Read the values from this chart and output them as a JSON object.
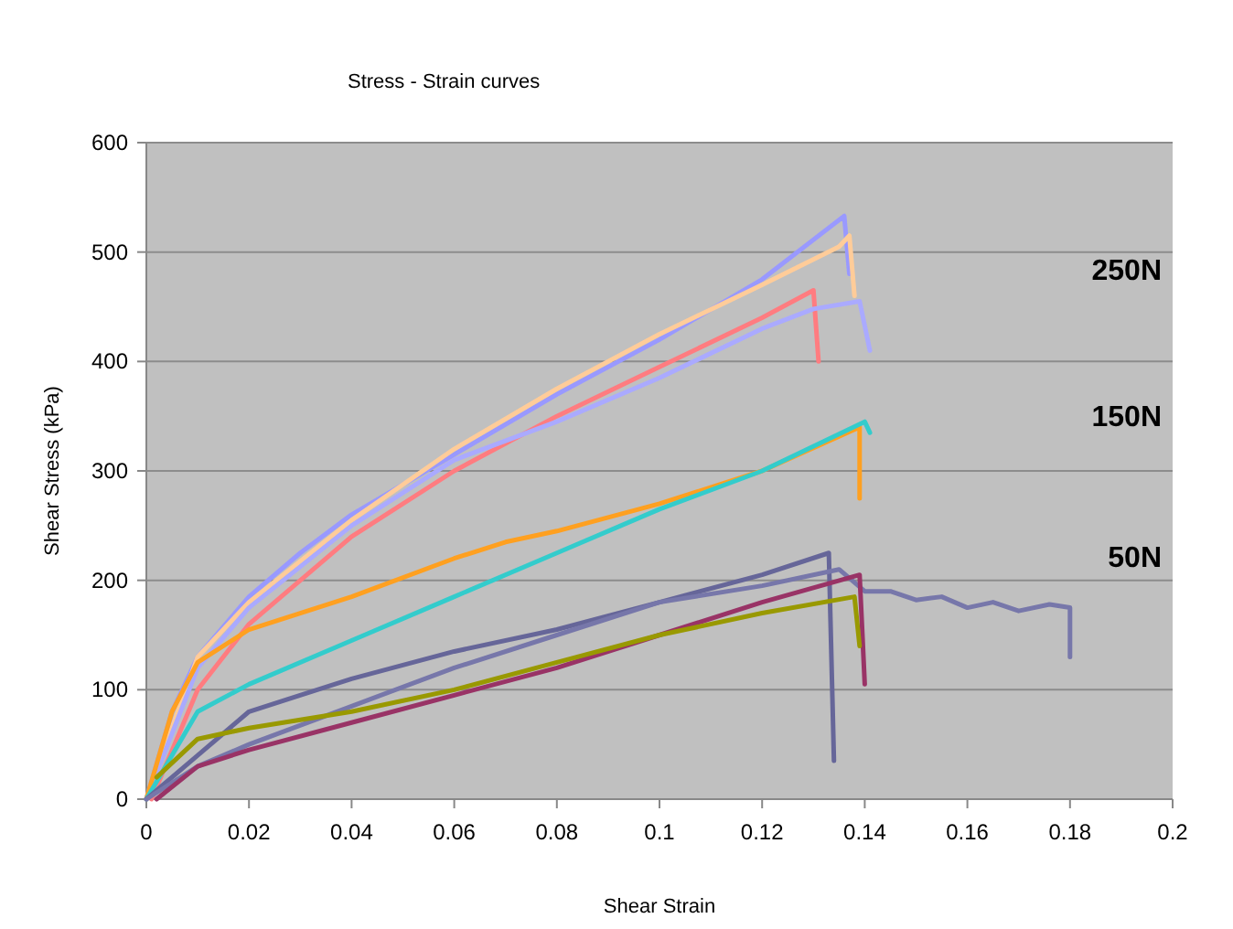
{
  "chart_data": {
    "type": "line",
    "title": "Stress - Strain curves",
    "xlabel": "Shear Strain",
    "ylabel": "Shear Stress (kPa)",
    "xlim": [
      0,
      0.2
    ],
    "xticks": [
      0,
      0.02,
      0.04,
      0.06,
      0.08,
      0.1,
      0.12,
      0.14,
      0.16,
      0.18,
      0.2
    ],
    "ylim": [
      0,
      600
    ],
    "yticks": [
      0,
      100,
      200,
      300,
      400,
      500,
      600
    ],
    "grid": "y",
    "line_style": "solid",
    "annotations": [
      "250N",
      "150N",
      "50N"
    ],
    "series": [
      {
        "color": "#9999ff",
        "x": [
          0,
          0.005,
          0.01,
          0.02,
          0.03,
          0.04,
          0.06,
          0.08,
          0.1,
          0.12,
          0.136,
          0.137
        ],
        "values": [
          0,
          80,
          130,
          185,
          225,
          260,
          315,
          370,
          420,
          475,
          533,
          480
        ]
      },
      {
        "color": "#ffcc99",
        "x": [
          0,
          0.01,
          0.02,
          0.04,
          0.06,
          0.08,
          0.1,
          0.12,
          0.135,
          0.137,
          0.138
        ],
        "values": [
          0,
          130,
          180,
          255,
          320,
          375,
          425,
          470,
          505,
          515,
          460
        ]
      },
      {
        "color": "#ff7c80",
        "x": [
          0.001,
          0.01,
          0.02,
          0.04,
          0.06,
          0.08,
          0.1,
          0.12,
          0.13,
          0.131
        ],
        "values": [
          0,
          100,
          160,
          240,
          300,
          350,
          395,
          440,
          465,
          400
        ]
      },
      {
        "color": "#aaaaff",
        "x": [
          0,
          0.01,
          0.02,
          0.04,
          0.06,
          0.08,
          0.1,
          0.12,
          0.13,
          0.139,
          0.141
        ],
        "values": [
          0,
          120,
          175,
          250,
          310,
          345,
          385,
          430,
          448,
          455,
          410
        ]
      },
      {
        "color": "#ffa020",
        "x": [
          0,
          0.005,
          0.01,
          0.02,
          0.04,
          0.06,
          0.07,
          0.08,
          0.1,
          0.12,
          0.139,
          0.139
        ],
        "values": [
          0,
          80,
          125,
          155,
          185,
          220,
          235,
          245,
          270,
          300,
          340,
          275
        ]
      },
      {
        "color": "#33cccc",
        "x": [
          0,
          0.01,
          0.02,
          0.04,
          0.06,
          0.08,
          0.1,
          0.12,
          0.14,
          0.141
        ],
        "values": [
          0,
          80,
          105,
          145,
          185,
          225,
          265,
          300,
          345,
          335
        ]
      },
      {
        "color": "#666699",
        "x": [
          0,
          0.01,
          0.02,
          0.04,
          0.06,
          0.08,
          0.1,
          0.12,
          0.133,
          0.134
        ],
        "values": [
          0,
          40,
          80,
          110,
          135,
          155,
          180,
          205,
          225,
          35
        ]
      },
      {
        "color": "#7777aa",
        "x": [
          0,
          0.01,
          0.02,
          0.04,
          0.06,
          0.08,
          0.1,
          0.12,
          0.135,
          0.14,
          0.145,
          0.15,
          0.155,
          0.16,
          0.165,
          0.17,
          0.176,
          0.18,
          0.18
        ],
        "values": [
          0,
          30,
          50,
          85,
          120,
          150,
          180,
          195,
          210,
          190,
          190,
          182,
          185,
          175,
          180,
          172,
          178,
          175,
          130
        ]
      },
      {
        "color": "#993366",
        "x": [
          0.002,
          0.01,
          0.02,
          0.04,
          0.06,
          0.08,
          0.1,
          0.12,
          0.139,
          0.14
        ],
        "values": [
          0,
          30,
          45,
          70,
          95,
          120,
          150,
          180,
          205,
          105
        ]
      },
      {
        "color": "#999900",
        "x": [
          0.002,
          0.01,
          0.02,
          0.04,
          0.06,
          0.08,
          0.1,
          0.12,
          0.138,
          0.139
        ],
        "values": [
          20,
          55,
          65,
          80,
          100,
          125,
          150,
          170,
          185,
          140
        ]
      }
    ]
  }
}
